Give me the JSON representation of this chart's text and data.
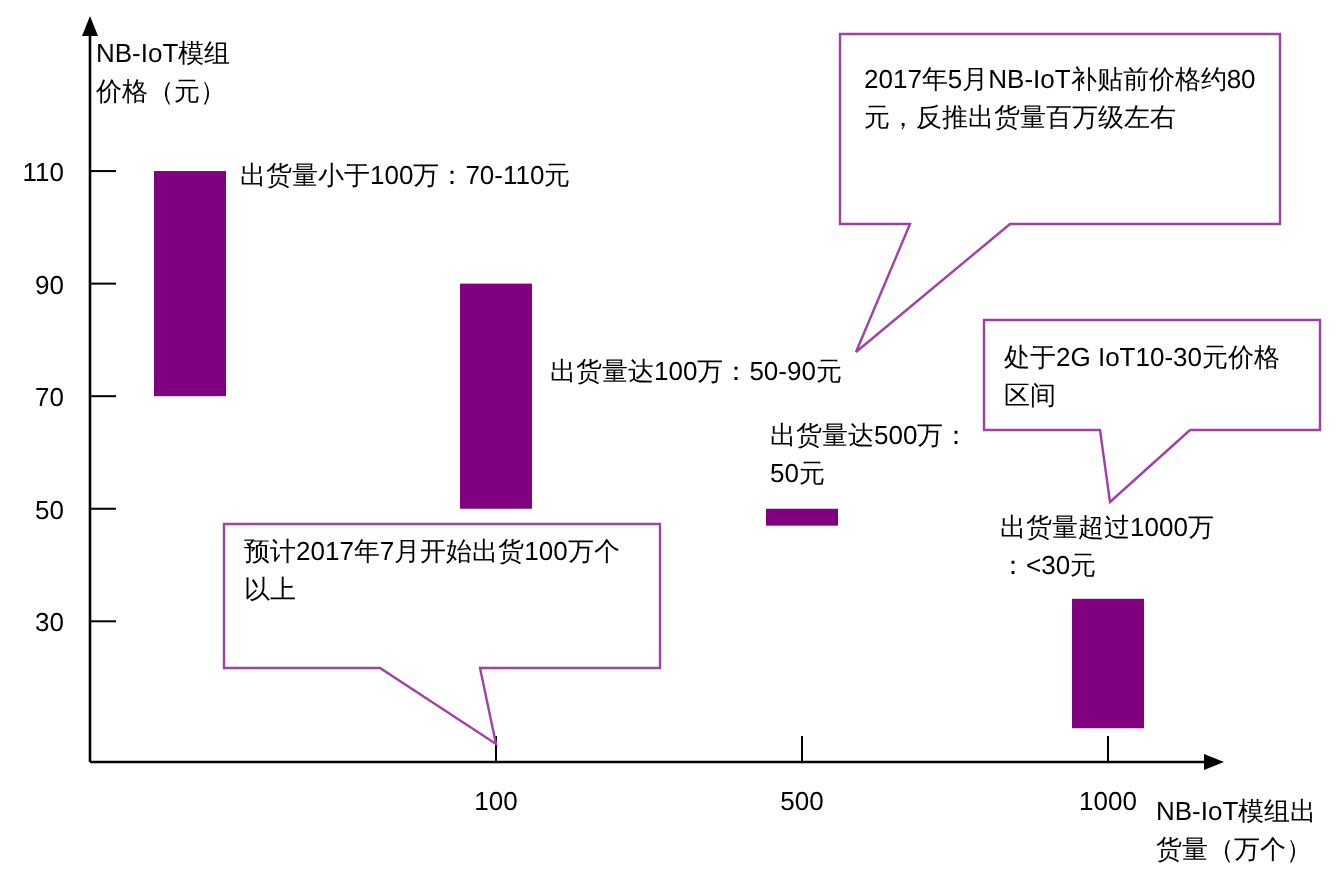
{
  "chart_data": {
    "type": "bar",
    "xlabel": "NB-IoT模组出货量（万个）",
    "ylabel": "NB-IoT模组价格（元）",
    "categories": [
      null,
      "100",
      "500",
      "1000"
    ],
    "values": [
      40,
      40,
      3,
      23
    ],
    "base": [
      70,
      50,
      47,
      11
    ],
    "color": "#800080",
    "ylim": [
      5,
      134
    ],
    "yticks": [
      30,
      50,
      70,
      90,
      110
    ],
    "annotations": [
      "出货量小于100万：70-110元",
      "出货量达100万：50-90元",
      "2017年5月NB-IoT补贴前价格约80元，反推出货量百万级左右",
      "出货量达500万：50元",
      "处于2G IoT10-30元价格区间",
      "出货量超过1000万：<30元",
      "预计2017年7月开始出货100万个以上"
    ]
  }
}
